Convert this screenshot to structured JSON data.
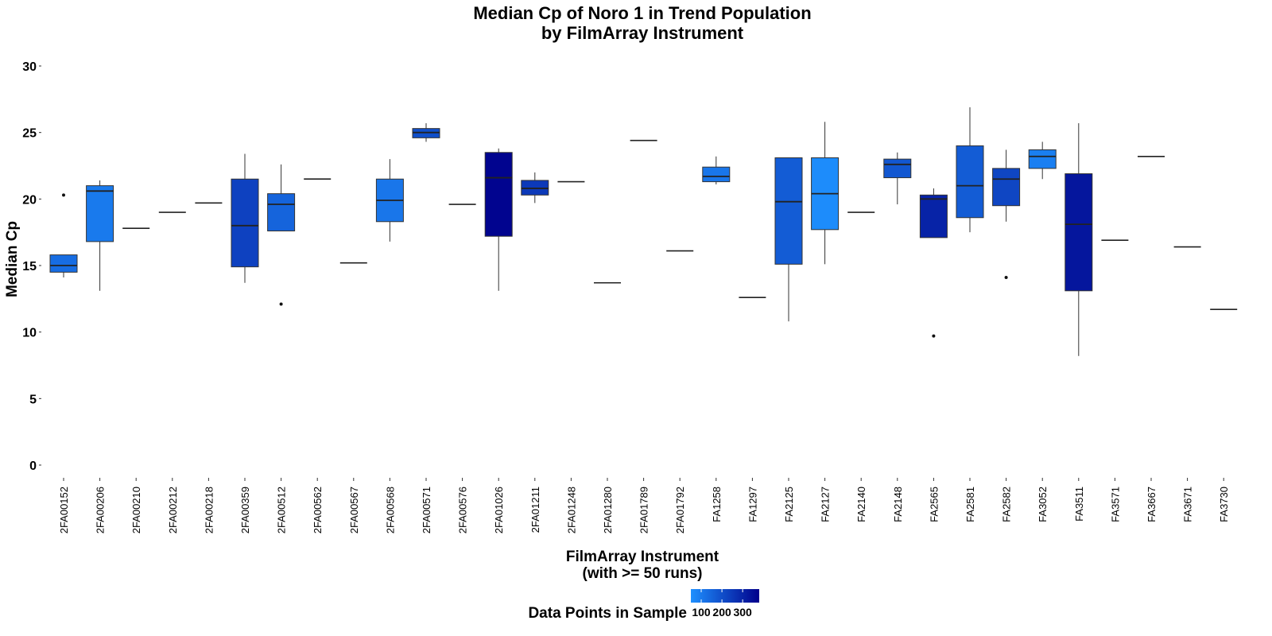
{
  "chart_data": {
    "type": "boxplot",
    "title": [
      "Median Cp of Noro 1 in Trend Population",
      "by FilmArray Instrument"
    ],
    "xlabel": [
      "FilmArray Instrument",
      "(with >= 50 runs)"
    ],
    "ylabel": "Median Cp",
    "ylim": [
      0,
      31
    ],
    "yticks": [
      0,
      5,
      10,
      15,
      20,
      25,
      30
    ],
    "grid": false,
    "legend": {
      "title": "Data Points in Sample",
      "position": "bottom",
      "ticks": [
        100,
        200,
        300
      ],
      "tick_labels": [
        "100",
        "200",
        "300"
      ],
      "range": [
        50,
        380
      ],
      "colors": [
        "#1E90FF",
        "#00008B"
      ]
    },
    "boxes": [
      {
        "label": "2FA00152",
        "min": 14.1,
        "q1": 14.5,
        "median": 15.0,
        "q3": 15.8,
        "max": 15.8,
        "outliers": [
          20.3
        ],
        "count": 130
      },
      {
        "label": "2FA00206",
        "min": 13.1,
        "q1": 16.8,
        "median": 20.6,
        "q3": 21.0,
        "max": 21.4,
        "outliers": [],
        "count": 100
      },
      {
        "label": "2FA00210",
        "min": 17.8,
        "q1": 17.8,
        "median": 17.8,
        "q3": 17.8,
        "max": 17.8,
        "outliers": [],
        "count": 60
      },
      {
        "label": "2FA00212",
        "min": 19.0,
        "q1": 19.0,
        "median": 19.0,
        "q3": 19.0,
        "max": 19.0,
        "outliers": [],
        "count": 60
      },
      {
        "label": "2FA00218",
        "min": 19.7,
        "q1": 19.7,
        "median": 19.7,
        "q3": 19.7,
        "max": 19.7,
        "outliers": [],
        "count": 60
      },
      {
        "label": "2FA00359",
        "min": 13.7,
        "q1": 14.9,
        "median": 18.0,
        "q3": 21.5,
        "max": 23.4,
        "outliers": [],
        "count": 230
      },
      {
        "label": "2FA00512",
        "min": 17.6,
        "q1": 17.6,
        "median": 19.6,
        "q3": 20.4,
        "max": 22.6,
        "outliers": [
          12.1
        ],
        "count": 150
      },
      {
        "label": "2FA00562",
        "min": 21.5,
        "q1": 21.5,
        "median": 21.5,
        "q3": 21.5,
        "max": 21.5,
        "outliers": [],
        "count": 60
      },
      {
        "label": "2FA00567",
        "min": 15.2,
        "q1": 15.2,
        "median": 15.2,
        "q3": 15.2,
        "max": 15.2,
        "outliers": [],
        "count": 60
      },
      {
        "label": "2FA00568",
        "min": 16.8,
        "q1": 18.3,
        "median": 19.9,
        "q3": 21.5,
        "max": 23.0,
        "outliers": [],
        "count": 110
      },
      {
        "label": "2FA00571",
        "min": 24.3,
        "q1": 24.6,
        "median": 25.0,
        "q3": 25.3,
        "max": 25.7,
        "outliers": [],
        "count": 200
      },
      {
        "label": "2FA00576",
        "min": 19.6,
        "q1": 19.6,
        "median": 19.6,
        "q3": 19.6,
        "max": 19.6,
        "outliers": [],
        "count": 60
      },
      {
        "label": "2FA01026",
        "min": 13.1,
        "q1": 17.2,
        "median": 21.6,
        "q3": 23.5,
        "max": 23.8,
        "outliers": [],
        "count": 370
      },
      {
        "label": "2FA01211",
        "min": 19.7,
        "q1": 20.3,
        "median": 20.8,
        "q3": 21.4,
        "max": 22.0,
        "outliers": [],
        "count": 250
      },
      {
        "label": "2FA01248",
        "min": 21.3,
        "q1": 21.3,
        "median": 21.3,
        "q3": 21.3,
        "max": 21.3,
        "outliers": [],
        "count": 60
      },
      {
        "label": "2FA01280",
        "min": 13.7,
        "q1": 13.7,
        "median": 13.7,
        "q3": 13.7,
        "max": 13.7,
        "outliers": [],
        "count": 60
      },
      {
        "label": "2FA01789",
        "min": 24.4,
        "q1": 24.4,
        "median": 24.4,
        "q3": 24.4,
        "max": 24.4,
        "outliers": [],
        "count": 60
      },
      {
        "label": "2FA01792",
        "min": 16.1,
        "q1": 16.1,
        "median": 16.1,
        "q3": 16.1,
        "max": 16.1,
        "outliers": [],
        "count": 60
      },
      {
        "label": "FA1258",
        "min": 21.1,
        "q1": 21.3,
        "median": 21.7,
        "q3": 22.4,
        "max": 23.2,
        "outliers": [],
        "count": 110
      },
      {
        "label": "FA1297",
        "min": 12.6,
        "q1": 12.6,
        "median": 12.6,
        "q3": 12.6,
        "max": 12.6,
        "outliers": [],
        "count": 60
      },
      {
        "label": "FA2125",
        "min": 10.8,
        "q1": 15.1,
        "median": 19.8,
        "q3": 23.1,
        "max": 23.1,
        "outliers": [],
        "count": 170
      },
      {
        "label": "FA2127",
        "min": 15.1,
        "q1": 17.7,
        "median": 20.4,
        "q3": 23.1,
        "max": 25.8,
        "outliers": [],
        "count": 60
      },
      {
        "label": "FA2140",
        "min": 19.0,
        "q1": 19.0,
        "median": 19.0,
        "q3": 19.0,
        "max": 19.0,
        "outliers": [],
        "count": 60
      },
      {
        "label": "FA2148",
        "min": 19.6,
        "q1": 21.6,
        "median": 22.6,
        "q3": 23.0,
        "max": 23.5,
        "outliers": [],
        "count": 180
      },
      {
        "label": "FA2565",
        "min": 17.1,
        "q1": 17.1,
        "median": 20.0,
        "q3": 20.3,
        "max": 20.8,
        "outliers": [
          9.7
        ],
        "count": 300
      },
      {
        "label": "FA2581",
        "min": 17.5,
        "q1": 18.6,
        "median": 21.0,
        "q3": 24.0,
        "max": 26.9,
        "outliers": [],
        "count": 170
      },
      {
        "label": "FA2582",
        "min": 18.3,
        "q1": 19.5,
        "median": 21.5,
        "q3": 22.3,
        "max": 23.7,
        "outliers": [
          14.1
        ],
        "count": 220
      },
      {
        "label": "FA3052",
        "min": 21.5,
        "q1": 22.3,
        "median": 23.2,
        "q3": 23.7,
        "max": 24.3,
        "outliers": [],
        "count": 90
      },
      {
        "label": "FA3511",
        "min": 8.2,
        "q1": 13.1,
        "median": 18.1,
        "q3": 21.9,
        "max": 25.7,
        "outliers": [],
        "count": 330
      },
      {
        "label": "FA3571",
        "min": 16.9,
        "q1": 16.9,
        "median": 16.9,
        "q3": 16.9,
        "max": 16.9,
        "outliers": [],
        "count": 60
      },
      {
        "label": "FA3667",
        "min": 23.2,
        "q1": 23.2,
        "median": 23.2,
        "q3": 23.2,
        "max": 23.2,
        "outliers": [],
        "count": 60
      },
      {
        "label": "FA3671",
        "min": 16.4,
        "q1": 16.4,
        "median": 16.4,
        "q3": 16.4,
        "max": 16.4,
        "outliers": [],
        "count": 60
      },
      {
        "label": "FA3730",
        "min": 11.7,
        "q1": 11.7,
        "median": 11.7,
        "q3": 11.7,
        "max": 11.7,
        "outliers": [],
        "count": 60
      }
    ]
  }
}
